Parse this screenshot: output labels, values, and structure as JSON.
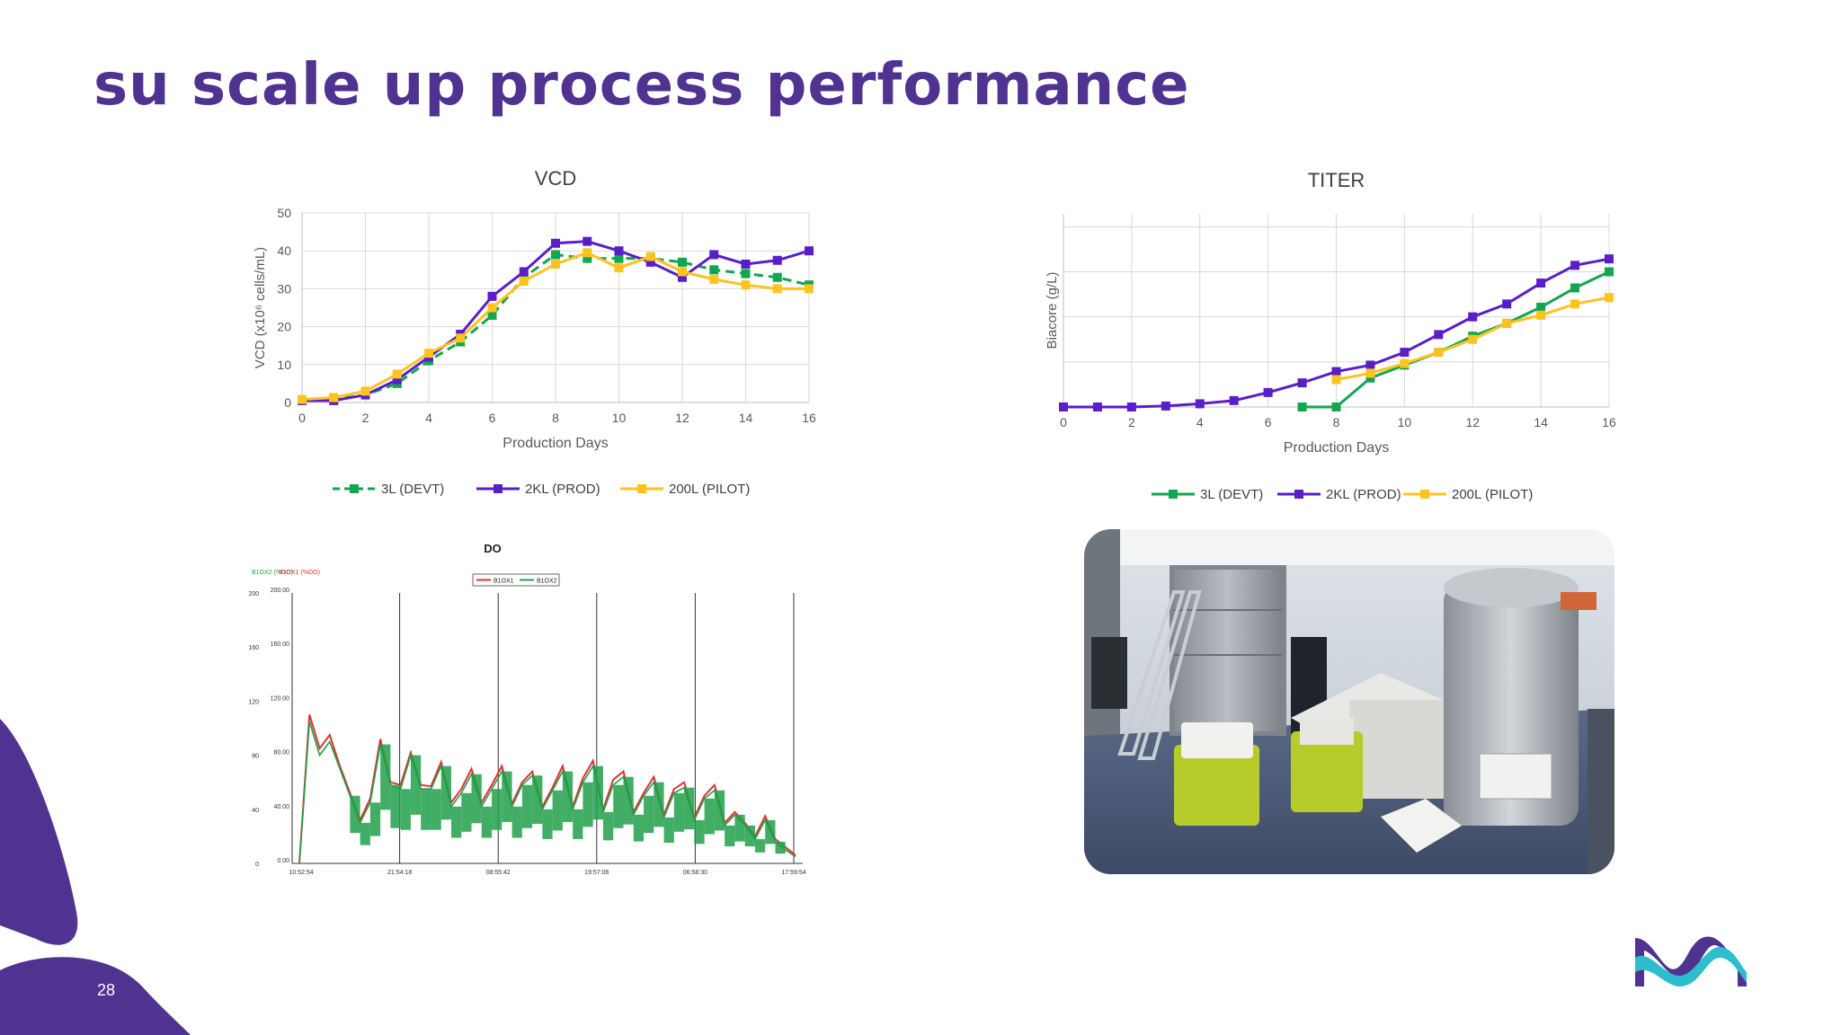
{
  "slide": {
    "title": "su scale up process performance",
    "page_number": "28"
  },
  "colors": {
    "brand_purple": "#503291",
    "devt_green": "#12a650",
    "prod_purple": "#5a1ec8",
    "pilot_yellow": "#ffc31e",
    "do_red": "#e0312f",
    "do_green": "#21a04a",
    "logo_teal": "#2dbecd"
  },
  "chart_data": [
    {
      "id": "vcd",
      "type": "line",
      "title": "VCD",
      "xlabel": "Production Days",
      "ylabel": "VCD (x10⁶ cells/mL)",
      "xlim": [
        0,
        16
      ],
      "ylim": [
        0,
        50
      ],
      "xticks": [
        "0",
        "2",
        "4",
        "6",
        "8",
        "10",
        "12",
        "14",
        "16"
      ],
      "yticks": [
        "0",
        "10",
        "20",
        "30",
        "40",
        "50"
      ],
      "grid": true,
      "legend_position": "bottom",
      "series": [
        {
          "name": "3L (DEVT)",
          "color": "#12a650",
          "dashed": true,
          "x": [
            0,
            1,
            2,
            3,
            4,
            5,
            6,
            7,
            8,
            9,
            10,
            11,
            12,
            13,
            14,
            15,
            16
          ],
          "y": [
            0.5,
            0.8,
            2,
            5,
            11,
            16,
            23,
            33,
            39,
            38,
            38,
            38,
            37,
            35,
            34,
            33,
            31
          ]
        },
        {
          "name": "2KL (PROD)",
          "color": "#5a1ec8",
          "dashed": false,
          "x": [
            0,
            1,
            2,
            3,
            4,
            5,
            6,
            7,
            8,
            9,
            10,
            11,
            12,
            13,
            14,
            15,
            16
          ],
          "y": [
            0.5,
            0.5,
            2,
            6,
            12,
            18,
            28,
            34.5,
            42,
            42.5,
            40,
            37,
            33,
            39,
            36.5,
            37.5,
            40
          ]
        },
        {
          "name": "200L (PILOT)",
          "color": "#ffc31e",
          "dashed": false,
          "x": [
            0,
            1,
            2,
            3,
            4,
            5,
            6,
            7,
            8,
            9,
            10,
            11,
            12,
            13,
            14,
            15,
            16
          ],
          "y": [
            0.8,
            1.3,
            3,
            7.5,
            13,
            17,
            25,
            32,
            36.5,
            39.5,
            35.5,
            38.5,
            34.5,
            32.5,
            31,
            30,
            30
          ]
        }
      ]
    },
    {
      "id": "titer",
      "type": "line",
      "title": "TITER",
      "xlabel": "Production Days",
      "ylabel": "Biacore (g/L)",
      "xlim": [
        0,
        16
      ],
      "ylim": [
        0,
        6
      ],
      "xticks": [
        "0",
        "2",
        "4",
        "6",
        "8",
        "10",
        "12",
        "14",
        "16"
      ],
      "grid": true,
      "legend_position": "bottom",
      "series": [
        {
          "name": "3L (DEVT)",
          "color": "#12a650",
          "x": [
            7,
            8,
            9,
            10,
            11,
            12,
            13,
            14,
            15,
            16
          ],
          "y": [
            0,
            0,
            0.9,
            1.3,
            1.7,
            2.2,
            2.6,
            3.1,
            3.7,
            4.2
          ]
        },
        {
          "name": "2KL (PROD)",
          "color": "#5a1ec8",
          "x": [
            0,
            1,
            2,
            3,
            4,
            5,
            6,
            7,
            8,
            9,
            10,
            11,
            12,
            13,
            14,
            15,
            16
          ],
          "y": [
            0,
            0,
            0,
            0.03,
            0.1,
            0.2,
            0.45,
            0.75,
            1.1,
            1.3,
            1.7,
            2.25,
            2.8,
            3.2,
            3.85,
            4.4,
            4.6
          ]
        },
        {
          "name": "200L (PILOT)",
          "color": "#ffc31e",
          "x": [
            8,
            9,
            10,
            11,
            12,
            13,
            14,
            15,
            16
          ],
          "y": [
            0.85,
            1.05,
            1.35,
            1.7,
            2.1,
            2.6,
            2.85,
            3.2,
            3.4
          ]
        }
      ]
    },
    {
      "id": "do",
      "type": "line",
      "title": "DO",
      "y_axis_left_labels": [
        "B1OX2 (%DO)",
        "B1OX1 (%DO)"
      ],
      "yticks_outer": [
        "0",
        "40",
        "80",
        "120",
        "160",
        "200"
      ],
      "yticks_inner": [
        "0.00",
        "40.00",
        "80.00",
        "120.00",
        "160.00",
        "200.00"
      ],
      "xticks": [
        "10:52:54",
        "21:54:18",
        "08:55:42",
        "19:57:06",
        "06:58:30",
        "17:59:54"
      ],
      "ylim": [
        0,
        200
      ],
      "legend_position": "top",
      "series": [
        {
          "name": "B1OX1",
          "color": "#e0312f",
          "y": [
            0,
            110,
            85,
            95,
            72,
            52,
            32,
            48,
            92,
            60,
            58,
            82,
            58,
            57,
            75,
            45,
            55,
            70,
            45,
            58,
            72,
            44,
            60,
            68,
            42,
            56,
            72,
            42,
            63,
            76,
            40,
            62,
            68,
            38,
            52,
            64,
            36,
            55,
            60,
            34,
            50,
            58,
            30,
            38,
            30,
            20,
            35,
            18,
            12,
            6
          ]
        },
        {
          "name": "B1OX2",
          "color": "#21a04a",
          "y": [
            0,
            105,
            80,
            90,
            70,
            50,
            30,
            45,
            88,
            58,
            55,
            80,
            55,
            55,
            72,
            42,
            52,
            66,
            42,
            55,
            68,
            42,
            58,
            65,
            40,
            54,
            68,
            40,
            60,
            72,
            38,
            58,
            64,
            36,
            50,
            60,
            34,
            52,
            56,
            32,
            48,
            54,
            28,
            36,
            28,
            18,
            32,
            16,
            10,
            5
          ]
        }
      ]
    }
  ]
}
